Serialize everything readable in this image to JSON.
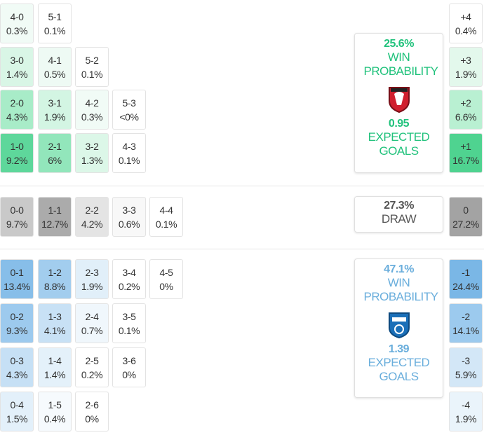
{
  "home": {
    "accent": "#21c27c",
    "rows": [
      [
        {
          "score": "4-0",
          "prob": "0.3%",
          "color": "#f1fbf6"
        },
        {
          "score": "5-1",
          "prob": "0.1%",
          "color": "#ffffff"
        }
      ],
      [
        {
          "score": "3-0",
          "prob": "1.4%",
          "color": "#d9f6e6"
        },
        {
          "score": "4-1",
          "prob": "0.5%",
          "color": "#eefaf4"
        },
        {
          "score": "5-2",
          "prob": "0.1%",
          "color": "#ffffff"
        }
      ],
      [
        {
          "score": "2-0",
          "prob": "4.3%",
          "color": "#a8ecc8"
        },
        {
          "score": "3-1",
          "prob": "1.9%",
          "color": "#d3f5e3"
        },
        {
          "score": "4-2",
          "prob": "0.3%",
          "color": "#f1fbf6"
        },
        {
          "score": "5-3",
          "prob": "<0%",
          "color": "#ffffff"
        }
      ],
      [
        {
          "score": "1-0",
          "prob": "9.2%",
          "color": "#5ed79b"
        },
        {
          "score": "2-1",
          "prob": "6%",
          "color": "#92e6bb"
        },
        {
          "score": "3-2",
          "prob": "1.3%",
          "color": "#dcf7e8"
        },
        {
          "score": "4-3",
          "prob": "0.1%",
          "color": "#ffffff"
        }
      ]
    ],
    "margins": [
      {
        "label": "+4",
        "prob": "0.4%",
        "color": "#ffffff"
      },
      {
        "label": "+3",
        "prob": "1.9%",
        "color": "#e3f8ec"
      },
      {
        "label": "+2",
        "prob": "6.6%",
        "color": "#b9f0d2"
      },
      {
        "label": "+1",
        "prob": "16.7%",
        "color": "#4fd390"
      }
    ],
    "win_pct": "25.6%",
    "win_label": "WIN PROBABILITY",
    "xg": "0.95",
    "xg_label": "EXPECTED GOALS"
  },
  "draw": {
    "accent": "#555555",
    "rows": [
      [
        {
          "score": "0-0",
          "prob": "9.7%",
          "color": "#c9c9c9"
        },
        {
          "score": "1-1",
          "prob": "12.7%",
          "color": "#ababab"
        },
        {
          "score": "2-2",
          "prob": "4.2%",
          "color": "#e4e4e4"
        },
        {
          "score": "3-3",
          "prob": "0.6%",
          "color": "#f8f8f8"
        },
        {
          "score": "4-4",
          "prob": "0.1%",
          "color": "#ffffff"
        }
      ]
    ],
    "margins": [
      {
        "label": "0",
        "prob": "27.2%",
        "color": "#a3a3a3"
      }
    ],
    "pct": "27.3%",
    "label": "DRAW"
  },
  "away": {
    "accent": "#6aaedc",
    "rows": [
      [
        {
          "score": "0-1",
          "prob": "13.4%",
          "color": "#87bee9"
        },
        {
          "score": "1-2",
          "prob": "8.8%",
          "color": "#a2cdee"
        },
        {
          "score": "2-3",
          "prob": "1.9%",
          "color": "#e1eff9"
        },
        {
          "score": "3-4",
          "prob": "0.2%",
          "color": "#ffffff"
        },
        {
          "score": "4-5",
          "prob": "0%",
          "color": "#ffffff"
        }
      ],
      [
        {
          "score": "0-2",
          "prob": "9.3%",
          "color": "#9dcaee"
        },
        {
          "score": "1-3",
          "prob": "4.1%",
          "color": "#c8e1f5"
        },
        {
          "score": "2-4",
          "prob": "0.7%",
          "color": "#f0f7fc"
        },
        {
          "score": "3-5",
          "prob": "0.1%",
          "color": "#ffffff"
        }
      ],
      [
        {
          "score": "0-3",
          "prob": "4.3%",
          "color": "#c6e0f5"
        },
        {
          "score": "1-4",
          "prob": "1.4%",
          "color": "#e4f1fa"
        },
        {
          "score": "2-5",
          "prob": "0.2%",
          "color": "#ffffff"
        },
        {
          "score": "3-6",
          "prob": "0%",
          "color": "#ffffff"
        }
      ],
      [
        {
          "score": "0-4",
          "prob": "1.5%",
          "color": "#e3f0fa"
        },
        {
          "score": "1-5",
          "prob": "0.4%",
          "color": "#f6fafd"
        },
        {
          "score": "2-6",
          "prob": "0%",
          "color": "#ffffff"
        }
      ]
    ],
    "margins": [
      {
        "label": "-1",
        "prob": "24.4%",
        "color": "#7ab7e6"
      },
      {
        "label": "-2",
        "prob": "14.1%",
        "color": "#9ccaee"
      },
      {
        "label": "-3",
        "prob": "5.9%",
        "color": "#d3e7f7"
      },
      {
        "label": "-4",
        "prob": "1.9%",
        "color": "#eaf4fb"
      }
    ],
    "win_pct": "47.1%",
    "win_label": "WIN PROBABILITY",
    "xg": "1.39",
    "xg_label": "EXPECTED GOALS"
  }
}
